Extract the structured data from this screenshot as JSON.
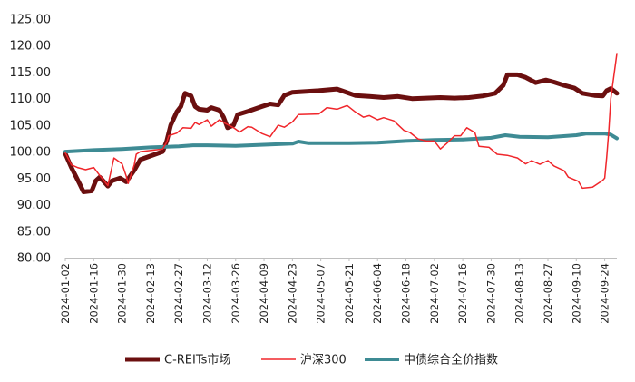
{
  "chart_data": {
    "type": "line",
    "title": "",
    "xlabel": "",
    "ylabel": "",
    "ylim": [
      80,
      125
    ],
    "yticks": [
      "80.00",
      "85.00",
      "90.00",
      "95.00",
      "100.00",
      "105.00",
      "110.00",
      "115.00",
      "120.00",
      "125.00"
    ],
    "x_range": [
      "2024-01-02",
      "2024-09-30"
    ],
    "x_ticks": [
      "2024-01-02",
      "2024-01-16",
      "2024-01-30",
      "2024-02-13",
      "2024-02-27",
      "2024-03-12",
      "2024-03-26",
      "2024-04-09",
      "2024-04-23",
      "2024-05-07",
      "2024-05-21",
      "2024-06-04",
      "2024-06-18",
      "2024-07-02",
      "2024-07-16",
      "2024-07-30",
      "2024-08-13",
      "2024-08-27",
      "2024-09-10",
      "2024-09-24"
    ],
    "grid": false,
    "legend_position": "bottom",
    "series": [
      {
        "name": "C-REITs市场",
        "color": "#6b0f0f",
        "width": 5,
        "points": [
          [
            "2024-01-02",
            99.6
          ],
          [
            "2024-01-05",
            97
          ],
          [
            "2024-01-09",
            94
          ],
          [
            "2024-01-11",
            92.4
          ],
          [
            "2024-01-15",
            92.6
          ],
          [
            "2024-01-17",
            94.5
          ],
          [
            "2024-01-19",
            95.2
          ],
          [
            "2024-01-23",
            93.5
          ],
          [
            "2024-01-25",
            94.5
          ],
          [
            "2024-01-29",
            95
          ],
          [
            "2024-02-01",
            94.3
          ],
          [
            "2024-02-05",
            96.5
          ],
          [
            "2024-02-08",
            98.5
          ],
          [
            "2024-02-19",
            100
          ],
          [
            "2024-02-21",
            102
          ],
          [
            "2024-02-23",
            105
          ],
          [
            "2024-02-26",
            107.5
          ],
          [
            "2024-02-28",
            108.5
          ],
          [
            "2024-03-01",
            111
          ],
          [
            "2024-03-04",
            110.5
          ],
          [
            "2024-03-06",
            108.5
          ],
          [
            "2024-03-08",
            108
          ],
          [
            "2024-03-12",
            107.8
          ],
          [
            "2024-03-14",
            108.3
          ],
          [
            "2024-03-18",
            107.8
          ],
          [
            "2024-03-20",
            106.5
          ],
          [
            "2024-03-22",
            104.5
          ],
          [
            "2024-03-25",
            105
          ],
          [
            "2024-03-27",
            107
          ],
          [
            "2024-04-01",
            107.6
          ],
          [
            "2024-04-08",
            108.5
          ],
          [
            "2024-04-12",
            109
          ],
          [
            "2024-04-16",
            108.8
          ],
          [
            "2024-04-19",
            110.6
          ],
          [
            "2024-04-23",
            111.2
          ],
          [
            "2024-05-06",
            111.5
          ],
          [
            "2024-05-15",
            111.8
          ],
          [
            "2024-05-24",
            110.6
          ],
          [
            "2024-05-31",
            110.4
          ],
          [
            "2024-06-07",
            110.2
          ],
          [
            "2024-06-14",
            110.4
          ],
          [
            "2024-06-21",
            110
          ],
          [
            "2024-06-28",
            110.1
          ],
          [
            "2024-07-05",
            110.2
          ],
          [
            "2024-07-12",
            110.1
          ],
          [
            "2024-07-19",
            110.2
          ],
          [
            "2024-07-26",
            110.5
          ],
          [
            "2024-08-01",
            111
          ],
          [
            "2024-08-05",
            112.5
          ],
          [
            "2024-08-07",
            114.5
          ],
          [
            "2024-08-12",
            114.5
          ],
          [
            "2024-08-16",
            114
          ],
          [
            "2024-08-21",
            113
          ],
          [
            "2024-08-26",
            113.5
          ],
          [
            "2024-08-30",
            113.1
          ],
          [
            "2024-09-04",
            112.5
          ],
          [
            "2024-09-09",
            112
          ],
          [
            "2024-09-13",
            111
          ],
          [
            "2024-09-19",
            110.6
          ],
          [
            "2024-09-23",
            110.5
          ],
          [
            "2024-09-25",
            111.5
          ],
          [
            "2024-09-27",
            111.9
          ],
          [
            "2024-09-30",
            111
          ]
        ]
      },
      {
        "name": "沪深300",
        "color": "#f0262b",
        "width": 1.5,
        "points": [
          [
            "2024-01-02",
            99.8
          ],
          [
            "2024-01-05",
            97.5
          ],
          [
            "2024-01-08",
            97
          ],
          [
            "2024-01-12",
            96.6
          ],
          [
            "2024-01-16",
            97
          ],
          [
            "2024-01-19",
            95.5
          ],
          [
            "2024-01-23",
            93.6
          ],
          [
            "2024-01-26",
            98.8
          ],
          [
            "2024-01-30",
            97.7
          ],
          [
            "2024-02-01",
            95.4
          ],
          [
            "2024-02-02",
            94
          ],
          [
            "2024-02-05",
            97.5
          ],
          [
            "2024-02-06",
            99.5
          ],
          [
            "2024-02-08",
            100
          ],
          [
            "2024-02-19",
            100.5
          ],
          [
            "2024-02-21",
            101.8
          ],
          [
            "2024-02-22",
            103
          ],
          [
            "2024-02-26",
            103.5
          ],
          [
            "2024-02-29",
            104.5
          ],
          [
            "2024-03-04",
            104.4
          ],
          [
            "2024-03-06",
            105.5
          ],
          [
            "2024-03-08",
            105.1
          ],
          [
            "2024-03-12",
            106
          ],
          [
            "2024-03-14",
            104.8
          ],
          [
            "2024-03-18",
            106
          ],
          [
            "2024-03-21",
            105.3
          ],
          [
            "2024-03-25",
            104.5
          ],
          [
            "2024-03-28",
            103.7
          ],
          [
            "2024-04-01",
            104.7
          ],
          [
            "2024-04-03",
            104.6
          ],
          [
            "2024-04-08",
            103.4
          ],
          [
            "2024-04-12",
            102.8
          ],
          [
            "2024-04-16",
            105
          ],
          [
            "2024-04-19",
            104.6
          ],
          [
            "2024-04-23",
            105.6
          ],
          [
            "2024-04-26",
            107
          ],
          [
            "2024-05-06",
            107.1
          ],
          [
            "2024-05-10",
            108.3
          ],
          [
            "2024-05-15",
            108
          ],
          [
            "2024-05-20",
            108.7
          ],
          [
            "2024-05-24",
            107.5
          ],
          [
            "2024-05-28",
            106.5
          ],
          [
            "2024-05-31",
            106.8
          ],
          [
            "2024-06-04",
            106
          ],
          [
            "2024-06-07",
            106.4
          ],
          [
            "2024-06-12",
            105.8
          ],
          [
            "2024-06-17",
            104
          ],
          [
            "2024-06-20",
            103.6
          ],
          [
            "2024-06-24",
            102.4
          ],
          [
            "2024-06-28",
            102
          ],
          [
            "2024-07-02",
            102
          ],
          [
            "2024-07-05",
            100.5
          ],
          [
            "2024-07-08",
            101.5
          ],
          [
            "2024-07-12",
            103
          ],
          [
            "2024-07-15",
            103
          ],
          [
            "2024-07-18",
            104.5
          ],
          [
            "2024-07-22",
            103.6
          ],
          [
            "2024-07-24",
            101
          ],
          [
            "2024-07-29",
            100.8
          ],
          [
            "2024-08-02",
            99.5
          ],
          [
            "2024-08-07",
            99.3
          ],
          [
            "2024-08-12",
            98.8
          ],
          [
            "2024-08-16",
            97.7
          ],
          [
            "2024-08-19",
            98.3
          ],
          [
            "2024-08-23",
            97.6
          ],
          [
            "2024-08-27",
            98.3
          ],
          [
            "2024-08-30",
            97.3
          ],
          [
            "2024-09-04",
            96.4
          ],
          [
            "2024-09-06",
            95.2
          ],
          [
            "2024-09-11",
            94.4
          ],
          [
            "2024-09-13",
            93.1
          ],
          [
            "2024-09-18",
            93.3
          ],
          [
            "2024-09-23",
            94.6
          ],
          [
            "2024-09-24",
            95
          ],
          [
            "2024-09-25",
            99
          ],
          [
            "2024-09-26",
            104
          ],
          [
            "2024-09-27",
            110
          ],
          [
            "2024-09-30",
            118.5
          ]
        ]
      },
      {
        "name": "中债综合全价指数",
        "color": "#3e8b94",
        "width": 4,
        "points": [
          [
            "2024-01-02",
            100
          ],
          [
            "2024-01-16",
            100.3
          ],
          [
            "2024-01-30",
            100.5
          ],
          [
            "2024-02-13",
            100.8
          ],
          [
            "2024-02-27",
            101
          ],
          [
            "2024-03-05",
            101.2
          ],
          [
            "2024-03-12",
            101.2
          ],
          [
            "2024-03-26",
            101.1
          ],
          [
            "2024-04-09",
            101.3
          ],
          [
            "2024-04-23",
            101.5
          ],
          [
            "2024-04-26",
            101.9
          ],
          [
            "2024-05-01",
            101.6
          ],
          [
            "2024-05-21",
            101.6
          ],
          [
            "2024-06-04",
            101.7
          ],
          [
            "2024-06-18",
            102
          ],
          [
            "2024-07-02",
            102.2
          ],
          [
            "2024-07-16",
            102.3
          ],
          [
            "2024-07-30",
            102.6
          ],
          [
            "2024-08-06",
            103.1
          ],
          [
            "2024-08-13",
            102.8
          ],
          [
            "2024-08-27",
            102.7
          ],
          [
            "2024-09-10",
            103.1
          ],
          [
            "2024-09-15",
            103.4
          ],
          [
            "2024-09-24",
            103.4
          ],
          [
            "2024-09-27",
            103.2
          ],
          [
            "2024-09-30",
            102.5
          ]
        ]
      }
    ]
  }
}
